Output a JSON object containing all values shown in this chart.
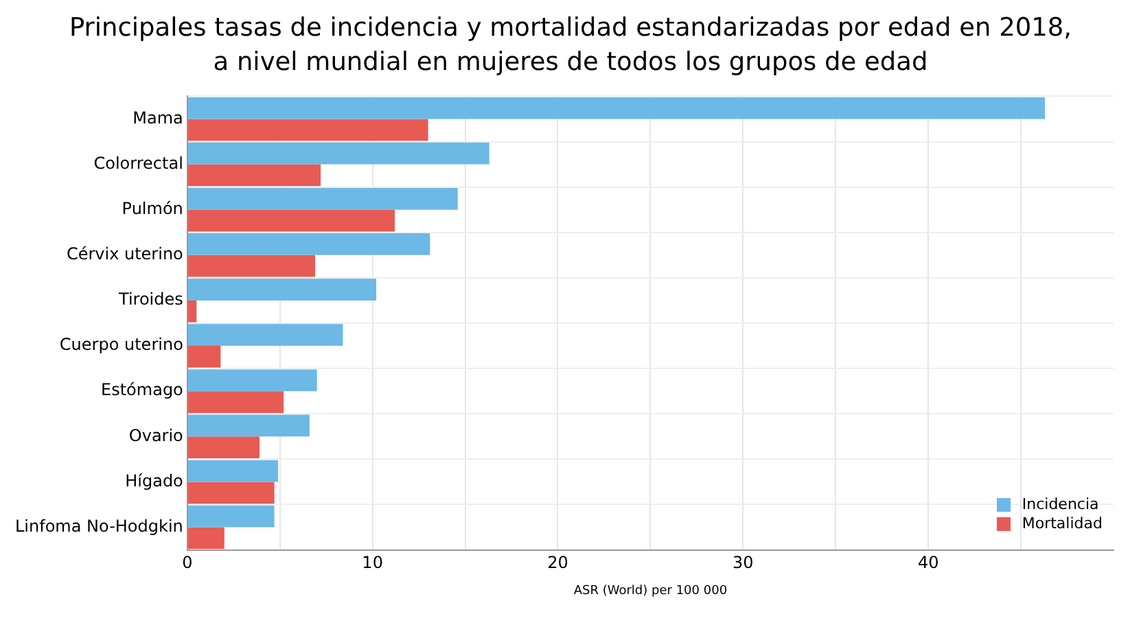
{
  "chart_data": {
    "type": "bar",
    "orientation": "horizontal",
    "title": "Principales tasas de incidencia y mortalidad estandarizadas por edad en 2018, a nivel mundial en mujeres de todos los grupos de edad",
    "xlabel": "ASR (World) per 100 000",
    "categories": [
      "Mama",
      "Colorrectal",
      "Pulmón",
      "Cérvix uterino",
      "Tiroides",
      "Cuerpo uterino",
      "Estómago",
      "Ovario",
      "Hígado",
      "Linfoma No-Hodgkin"
    ],
    "series": [
      {
        "name": "Incidencia",
        "color": "#6cb9e6",
        "values": [
          46.3,
          16.3,
          14.6,
          13.1,
          10.2,
          8.4,
          7.0,
          6.6,
          4.9,
          4.7
        ]
      },
      {
        "name": "Mortalidad",
        "color": "#e85a54",
        "values": [
          13.0,
          7.2,
          11.2,
          6.9,
          0.5,
          1.8,
          5.2,
          3.9,
          4.7,
          2.0
        ]
      }
    ],
    "xlim": [
      0,
      50
    ],
    "xticks": [
      0,
      {
        "value": 5,
        "label": null
      },
      10,
      {
        "value": 15,
        "label": null
      },
      20,
      {
        "value": 25,
        "label": null
      },
      30,
      {
        "value": 35,
        "label": null
      },
      40,
      {
        "value": 45,
        "label": null
      }
    ],
    "grid": true,
    "legend": "bottom right"
  }
}
